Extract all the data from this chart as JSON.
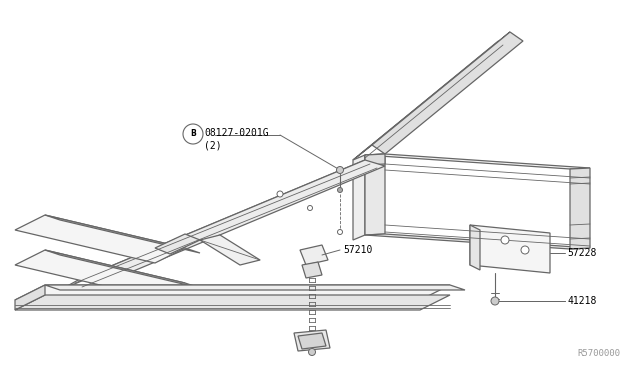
{
  "background_color": "#ffffff",
  "line_color": "#666666",
  "label_color": "#000000",
  "fig_width": 6.4,
  "fig_height": 3.72,
  "dpi": 100,
  "watermark": "R5700000",
  "label_fontsize": 7.0
}
